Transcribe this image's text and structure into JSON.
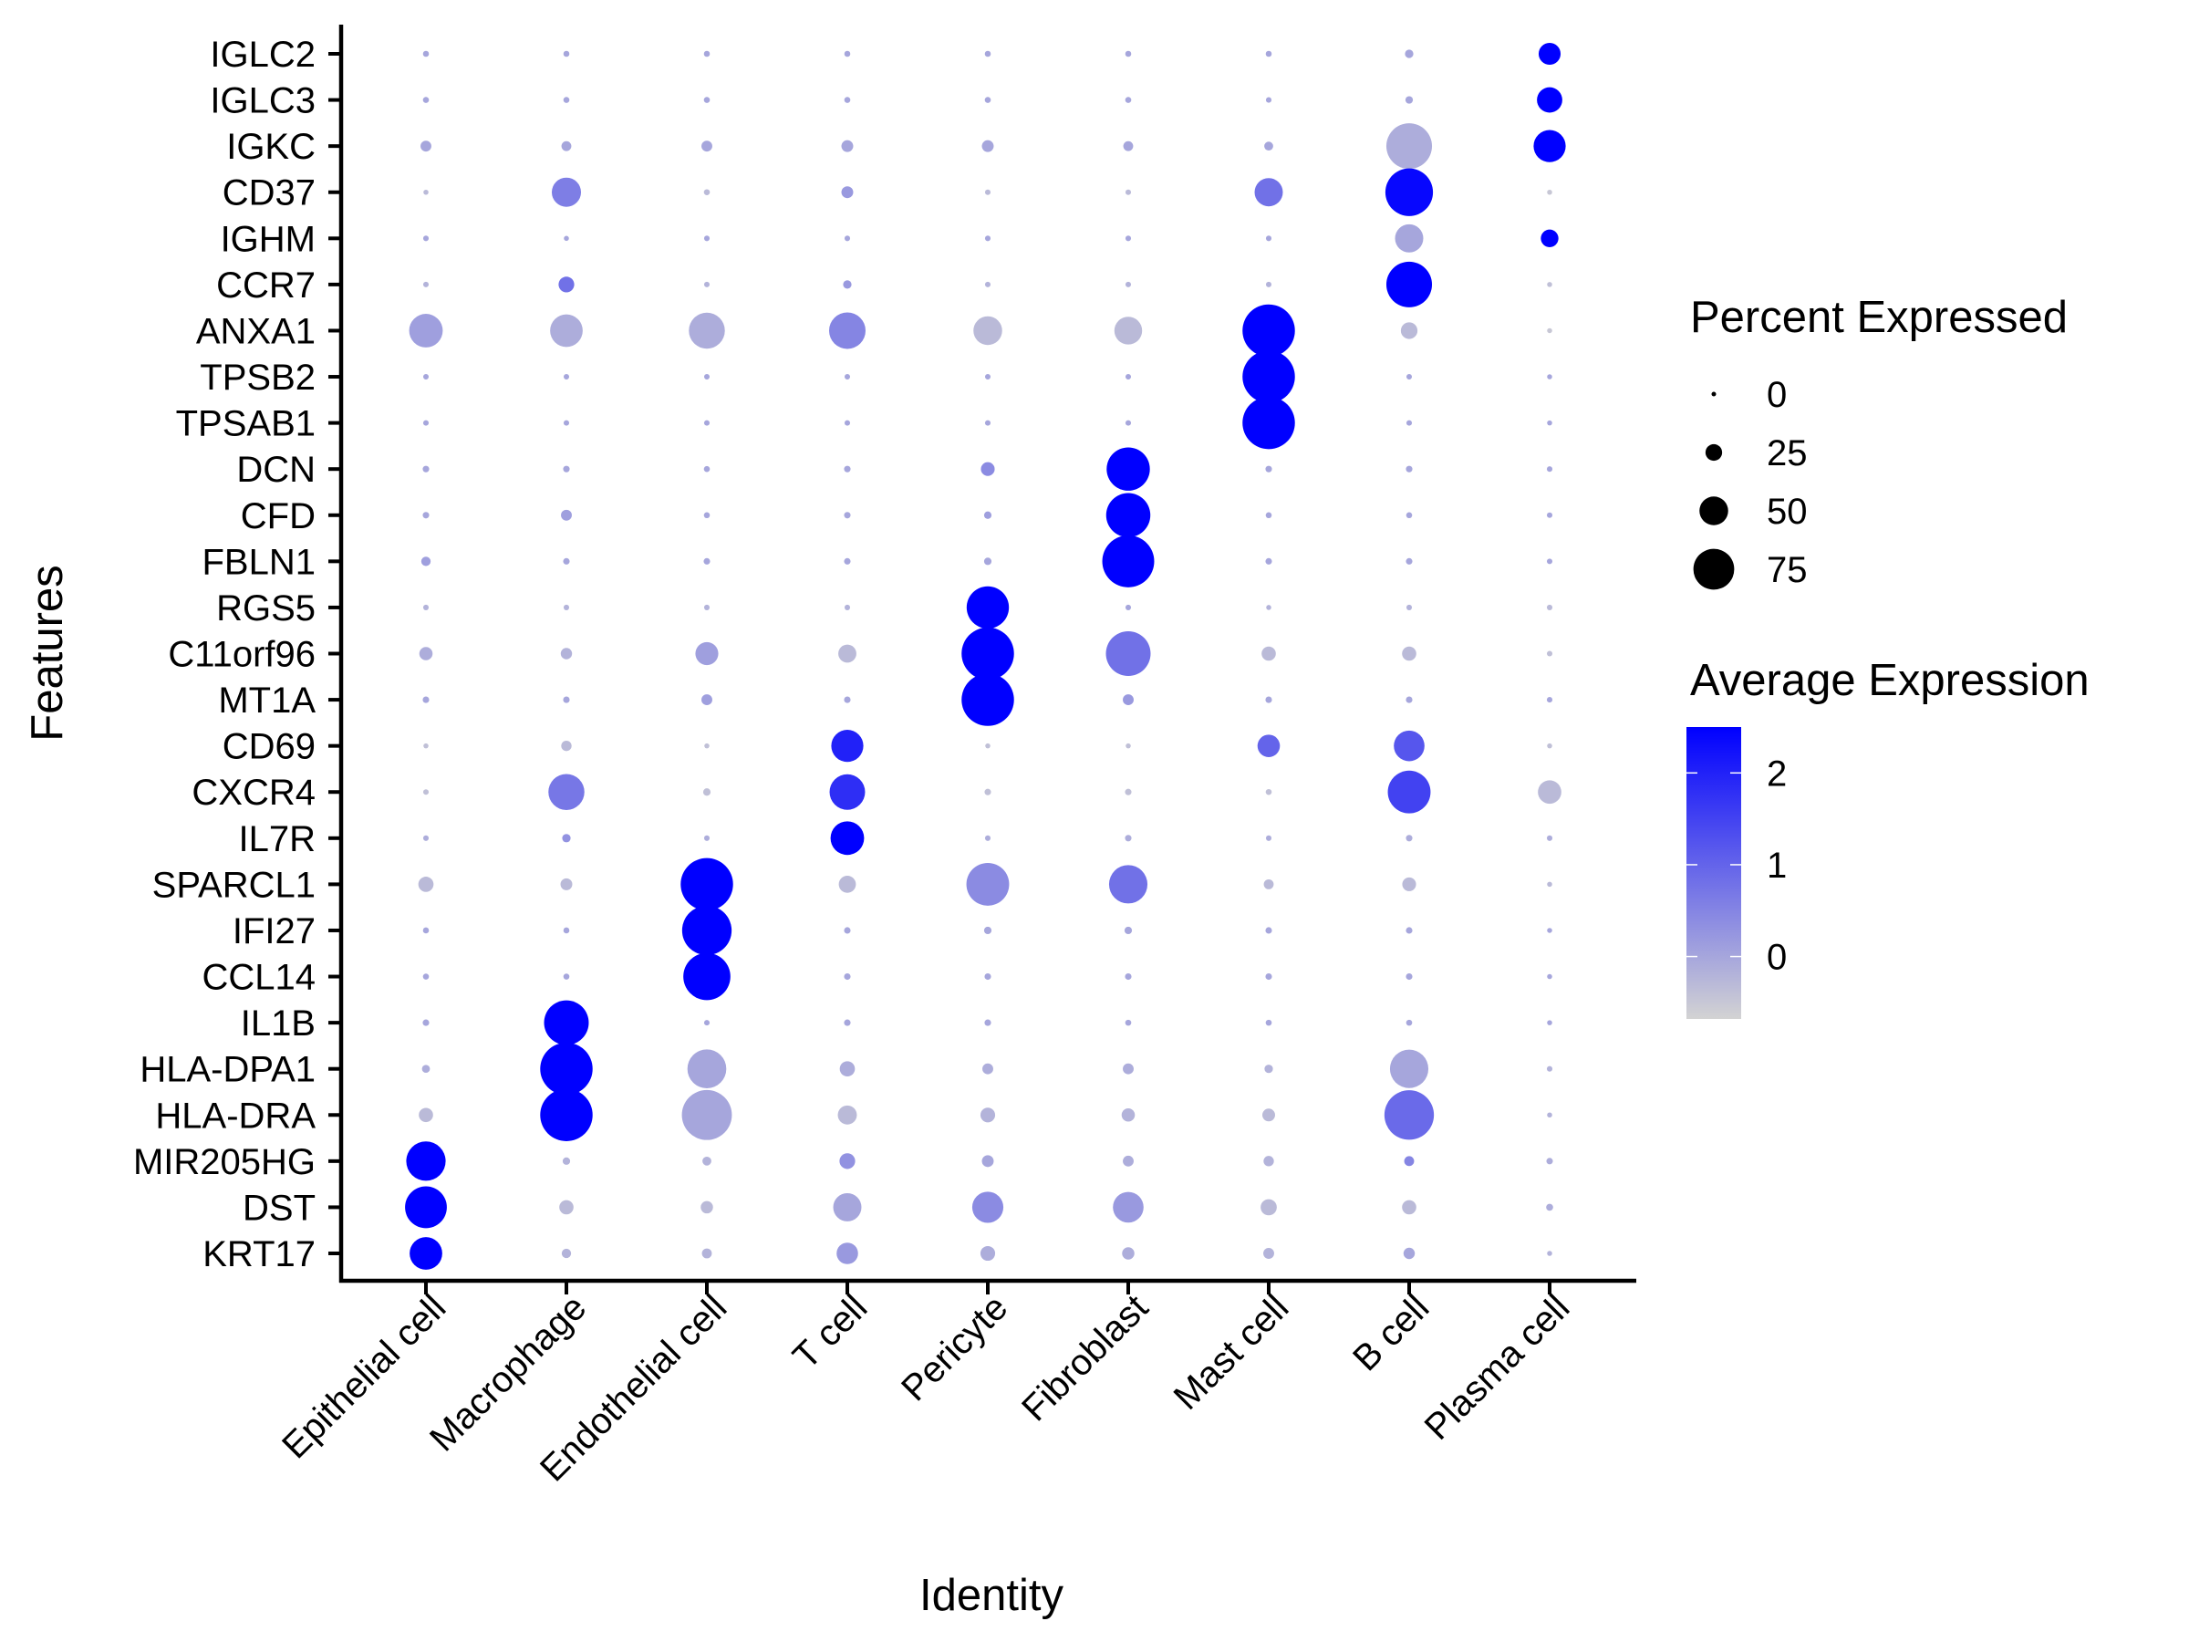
{
  "chart_data": {
    "type": "dotplot",
    "title": "",
    "xlabel": "Identity",
    "ylabel": "Features",
    "categories": [
      "Epithelial cell",
      "Macrophage",
      "Endothelial cell",
      "T cell",
      "Pericyte",
      "Fibroblast",
      "Mast cell",
      "B cell",
      "Plasma cell"
    ],
    "features": [
      "IGLC2",
      "IGLC3",
      "IGKC",
      "CD37",
      "IGHM",
      "CCR7",
      "ANXA1",
      "TPSB2",
      "TPSAB1",
      "DCN",
      "CFD",
      "FBLN1",
      "RGS5",
      "C11orf96",
      "MT1A",
      "CD69",
      "CXCR4",
      "IL7R",
      "SPARCL1",
      "IFI27",
      "CCL14",
      "IL1B",
      "HLA-DPA1",
      "HLA-DRA",
      "MIR205HG",
      "DST",
      "KRT17"
    ],
    "percent_expressed": [
      [
        3,
        3,
        3,
        3,
        3,
        3,
        3,
        8,
        36
      ],
      [
        3,
        3,
        3,
        3,
        3,
        3,
        2,
        6,
        43
      ],
      [
        13,
        11,
        13,
        15,
        15,
        11,
        9,
        85,
        57
      ],
      [
        1,
        51,
        3,
        15,
        2,
        2,
        49,
        89,
        1
      ],
      [
        2,
        1,
        2,
        2,
        2,
        2,
        2,
        49,
        27
      ],
      [
        2,
        23,
        2,
        8,
        2,
        2,
        2,
        85,
        1
      ],
      [
        60,
        58,
        65,
        66,
        50,
        48,
        99,
        25,
        1
      ],
      [
        2,
        2,
        2,
        2,
        2,
        2,
        99,
        2,
        1
      ],
      [
        2,
        2,
        2,
        2,
        2,
        2,
        99,
        2,
        1
      ],
      [
        4,
        4,
        3,
        4,
        19,
        80,
        4,
        4,
        2
      ],
      [
        4,
        13,
        3,
        4,
        6,
        82,
        3,
        3,
        2
      ],
      [
        10,
        4,
        4,
        4,
        6,
        98,
        4,
        4,
        2
      ],
      [
        2,
        2,
        2,
        2,
        78,
        2,
        1,
        2,
        2
      ],
      [
        18,
        14,
        38,
        28,
        99,
        83,
        20,
        20,
        2
      ],
      [
        4,
        4,
        13,
        4,
        99,
        13,
        4,
        4,
        2
      ],
      [
        1,
        12,
        1,
        57,
        1,
        1,
        37,
        54,
        1
      ],
      [
        2,
        65,
        6,
        64,
        4,
        4,
        3,
        79,
        39
      ],
      [
        2,
        8,
        2,
        60,
        2,
        4,
        2,
        4,
        2
      ],
      [
        22,
        15,
        99,
        26,
        79,
        70,
        11,
        19,
        1
      ],
      [
        3,
        3,
        93,
        4,
        6,
        6,
        4,
        4,
        1
      ],
      [
        3,
        3,
        88,
        4,
        4,
        4,
        4,
        4,
        1
      ],
      [
        4,
        83,
        2,
        4,
        4,
        3,
        3,
        3,
        1
      ],
      [
        7,
        99,
        71,
        22,
        13,
        13,
        8,
        70,
        2
      ],
      [
        20,
        99,
        94,
        30,
        21,
        18,
        17,
        93,
        1
      ],
      [
        72,
        6,
        9,
        23,
        15,
        13,
        12,
        11,
        4
      ],
      [
        77,
        20,
        16,
        49,
        55,
        54,
        24,
        20,
        5
      ],
      [
        58,
        10,
        11,
        35,
        21,
        16,
        13,
        14,
        1
      ]
    ],
    "average_expression": [
      [
        0.0,
        0.0,
        0.0,
        0.0,
        0.0,
        0.0,
        0.0,
        0.0,
        2.5
      ],
      [
        0.0,
        0.0,
        0.0,
        0.0,
        0.0,
        0.0,
        0.0,
        0.0,
        2.5
      ],
      [
        0.0,
        0.0,
        0.0,
        0.0,
        0.0,
        0.0,
        0.0,
        -0.1,
        2.5
      ],
      [
        -0.3,
        0.6,
        -0.3,
        0.2,
        -0.3,
        -0.3,
        0.8,
        2.4,
        -0.5
      ],
      [
        0.0,
        0.0,
        0.0,
        0.0,
        0.0,
        0.0,
        0.0,
        0.0,
        2.5
      ],
      [
        -0.2,
        0.8,
        -0.2,
        0.2,
        -0.2,
        -0.2,
        -0.2,
        2.5,
        -0.4
      ],
      [
        0.1,
        -0.1,
        -0.1,
        0.5,
        -0.3,
        -0.3,
        2.5,
        -0.3,
        -0.5
      ],
      [
        0.0,
        0.0,
        0.0,
        0.0,
        0.0,
        0.0,
        2.5,
        0.0,
        0.0
      ],
      [
        0.0,
        0.0,
        0.0,
        0.0,
        0.0,
        0.0,
        2.5,
        0.0,
        0.0
      ],
      [
        0.0,
        0.0,
        0.0,
        0.0,
        0.4,
        2.5,
        0.0,
        0.0,
        0.0
      ],
      [
        0.0,
        0.1,
        0.0,
        0.0,
        0.1,
        2.5,
        0.0,
        0.0,
        0.0
      ],
      [
        0.1,
        0.0,
        0.0,
        0.0,
        0.0,
        2.5,
        0.0,
        0.0,
        0.0
      ],
      [
        -0.2,
        -0.2,
        -0.2,
        -0.2,
        2.5,
        0.0,
        -0.2,
        -0.2,
        -0.3
      ],
      [
        -0.1,
        -0.2,
        0.1,
        -0.3,
        2.5,
        0.8,
        -0.3,
        -0.3,
        -0.4
      ],
      [
        0.0,
        0.0,
        0.1,
        0.0,
        2.5,
        0.2,
        0.0,
        0.0,
        0.0
      ],
      [
        -0.4,
        -0.3,
        -0.4,
        2.0,
        -0.4,
        -0.4,
        1.0,
        1.2,
        -0.4
      ],
      [
        -0.4,
        0.7,
        -0.4,
        1.8,
        -0.4,
        -0.4,
        -0.4,
        1.5,
        -0.3
      ],
      [
        -0.1,
        0.3,
        -0.1,
        2.5,
        -0.1,
        -0.1,
        -0.1,
        -0.1,
        -0.1
      ],
      [
        -0.3,
        -0.3,
        2.5,
        -0.3,
        0.4,
        0.8,
        -0.3,
        -0.3,
        -0.3
      ],
      [
        0.0,
        0.0,
        2.5,
        0.0,
        0.0,
        0.0,
        0.0,
        0.0,
        0.0
      ],
      [
        0.0,
        0.0,
        2.5,
        0.0,
        0.0,
        0.0,
        0.0,
        0.0,
        0.0
      ],
      [
        0.0,
        2.5,
        0.0,
        0.0,
        0.0,
        0.0,
        0.0,
        0.0,
        0.0
      ],
      [
        -0.1,
        2.5,
        0.0,
        -0.1,
        -0.1,
        -0.1,
        -0.2,
        0.0,
        -0.2
      ],
      [
        -0.3,
        2.5,
        0.0,
        -0.3,
        -0.2,
        -0.2,
        -0.3,
        0.9,
        -0.2
      ],
      [
        2.5,
        -0.2,
        -0.2,
        0.3,
        0.0,
        -0.1,
        -0.2,
        0.5,
        -0.1
      ],
      [
        2.5,
        -0.3,
        -0.3,
        0.0,
        0.4,
        0.2,
        -0.3,
        -0.3,
        -0.1
      ],
      [
        2.5,
        -0.2,
        -0.2,
        0.2,
        -0.1,
        -0.1,
        -0.2,
        0.0,
        -0.2
      ]
    ],
    "size_legend": {
      "title": "Percent Expressed",
      "breaks": [
        0,
        25,
        50,
        75
      ],
      "labels": [
        "0",
        "25",
        "50",
        "75"
      ],
      "range": [
        0,
        100
      ]
    },
    "color_legend": {
      "title": "Average Expression",
      "breaks": [
        2,
        1,
        0
      ],
      "labels": [
        "2",
        "1",
        "0"
      ],
      "range": [
        -0.68,
        2.5
      ],
      "low_color": "#D3D3D3",
      "high_color": "#0000FF"
    },
    "legend_position": "right",
    "grid": false
  },
  "labels": {
    "xlabel": "Identity",
    "ylabel": "Features",
    "size_legend_title": "Percent Expressed",
    "color_legend_title": "Average Expression"
  }
}
